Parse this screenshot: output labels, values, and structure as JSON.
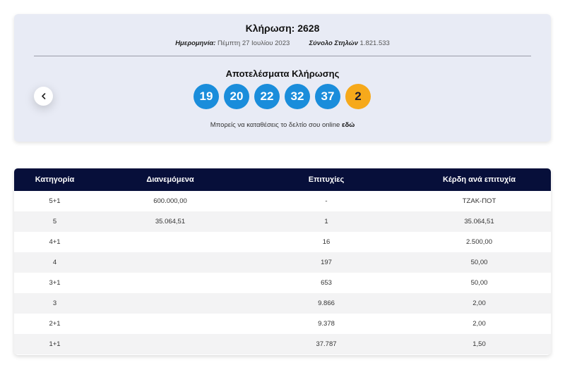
{
  "draw": {
    "title": "Κλήρωση: 2628",
    "date_label": "Ημερομηνία:",
    "date_value": "Πέμπτη 27 Ιουλίου 2023",
    "columns_label": "Σύνολο Στηλών",
    "columns_value": "1.821.533",
    "results_title": "Αποτελέσματα Κλήρωσης",
    "balls": [
      "19",
      "20",
      "22",
      "32",
      "37"
    ],
    "joker": "2",
    "online_text": "Μπορείς να καταθέσεις το δελτίο σου online",
    "online_link": "εδώ"
  },
  "table": {
    "headers": [
      "Κατηγορία",
      "Διανεμόμενα",
      "Επιτυχίες",
      "Κέρδη ανά επιτυχία"
    ],
    "rows": [
      [
        "5+1",
        "600.000,00",
        "-",
        "ΤΖΑΚ-ΠΟΤ"
      ],
      [
        "5",
        "35.064,51",
        "1",
        "35.064,51"
      ],
      [
        "4+1",
        "",
        "16",
        "2.500,00"
      ],
      [
        "4",
        "",
        "197",
        "50,00"
      ],
      [
        "3+1",
        "",
        "653",
        "50,00"
      ],
      [
        "3",
        "",
        "9.866",
        "2,00"
      ],
      [
        "2+1",
        "",
        "9.378",
        "2,00"
      ],
      [
        "1+1",
        "",
        "37.787",
        "1,50"
      ]
    ]
  },
  "colors": {
    "ball": "#1a8ddb",
    "joker": "#f6a91b",
    "header_bg": "#070f3a",
    "card_bg": "#e8ebf5"
  },
  "icons": {
    "prev": "chevron-left-icon"
  }
}
